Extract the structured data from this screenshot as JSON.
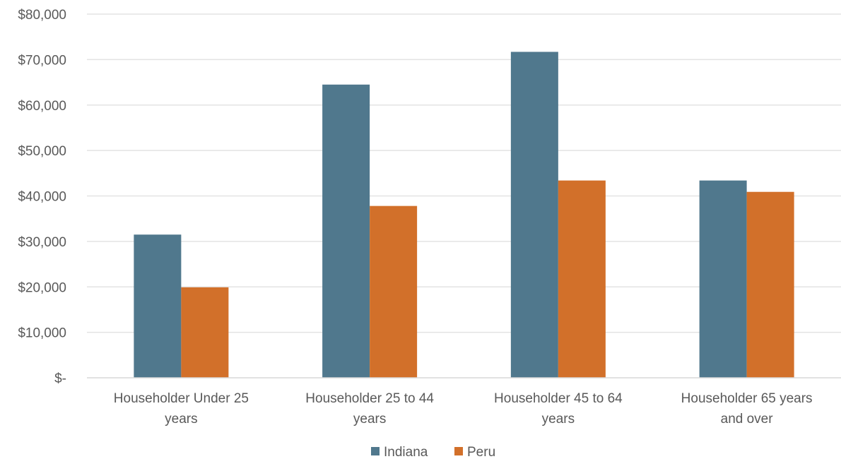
{
  "chart_data": {
    "type": "bar",
    "title": "",
    "xlabel": "",
    "ylabel": "",
    "categories": [
      [
        "Householder Under 25",
        "years"
      ],
      [
        "Householder 25 to 44",
        "years"
      ],
      [
        "Householder 45 to 64",
        "years"
      ],
      [
        "Householder 65 years",
        "and over"
      ]
    ],
    "series": [
      {
        "name": "Indiana",
        "color": "#50788d",
        "values": [
          31500,
          64500,
          71700,
          43400
        ]
      },
      {
        "name": "Peru",
        "color": "#d2702a",
        "values": [
          19900,
          37800,
          43400,
          40900
        ]
      }
    ],
    "ylim": [
      0,
      80000
    ],
    "yticks": [
      0,
      10000,
      20000,
      30000,
      40000,
      50000,
      60000,
      70000,
      80000
    ],
    "ytick_labels": [
      "$-",
      "$10,000",
      "$20,000",
      "$30,000",
      "$40,000",
      "$50,000",
      "$60,000",
      "$70,000",
      "$80,000"
    ],
    "grid": true,
    "legend_position": "bottom",
    "colors": {
      "gridline": "#e3e3e3",
      "axis": "#d9d9d9",
      "text": "#595959"
    }
  }
}
